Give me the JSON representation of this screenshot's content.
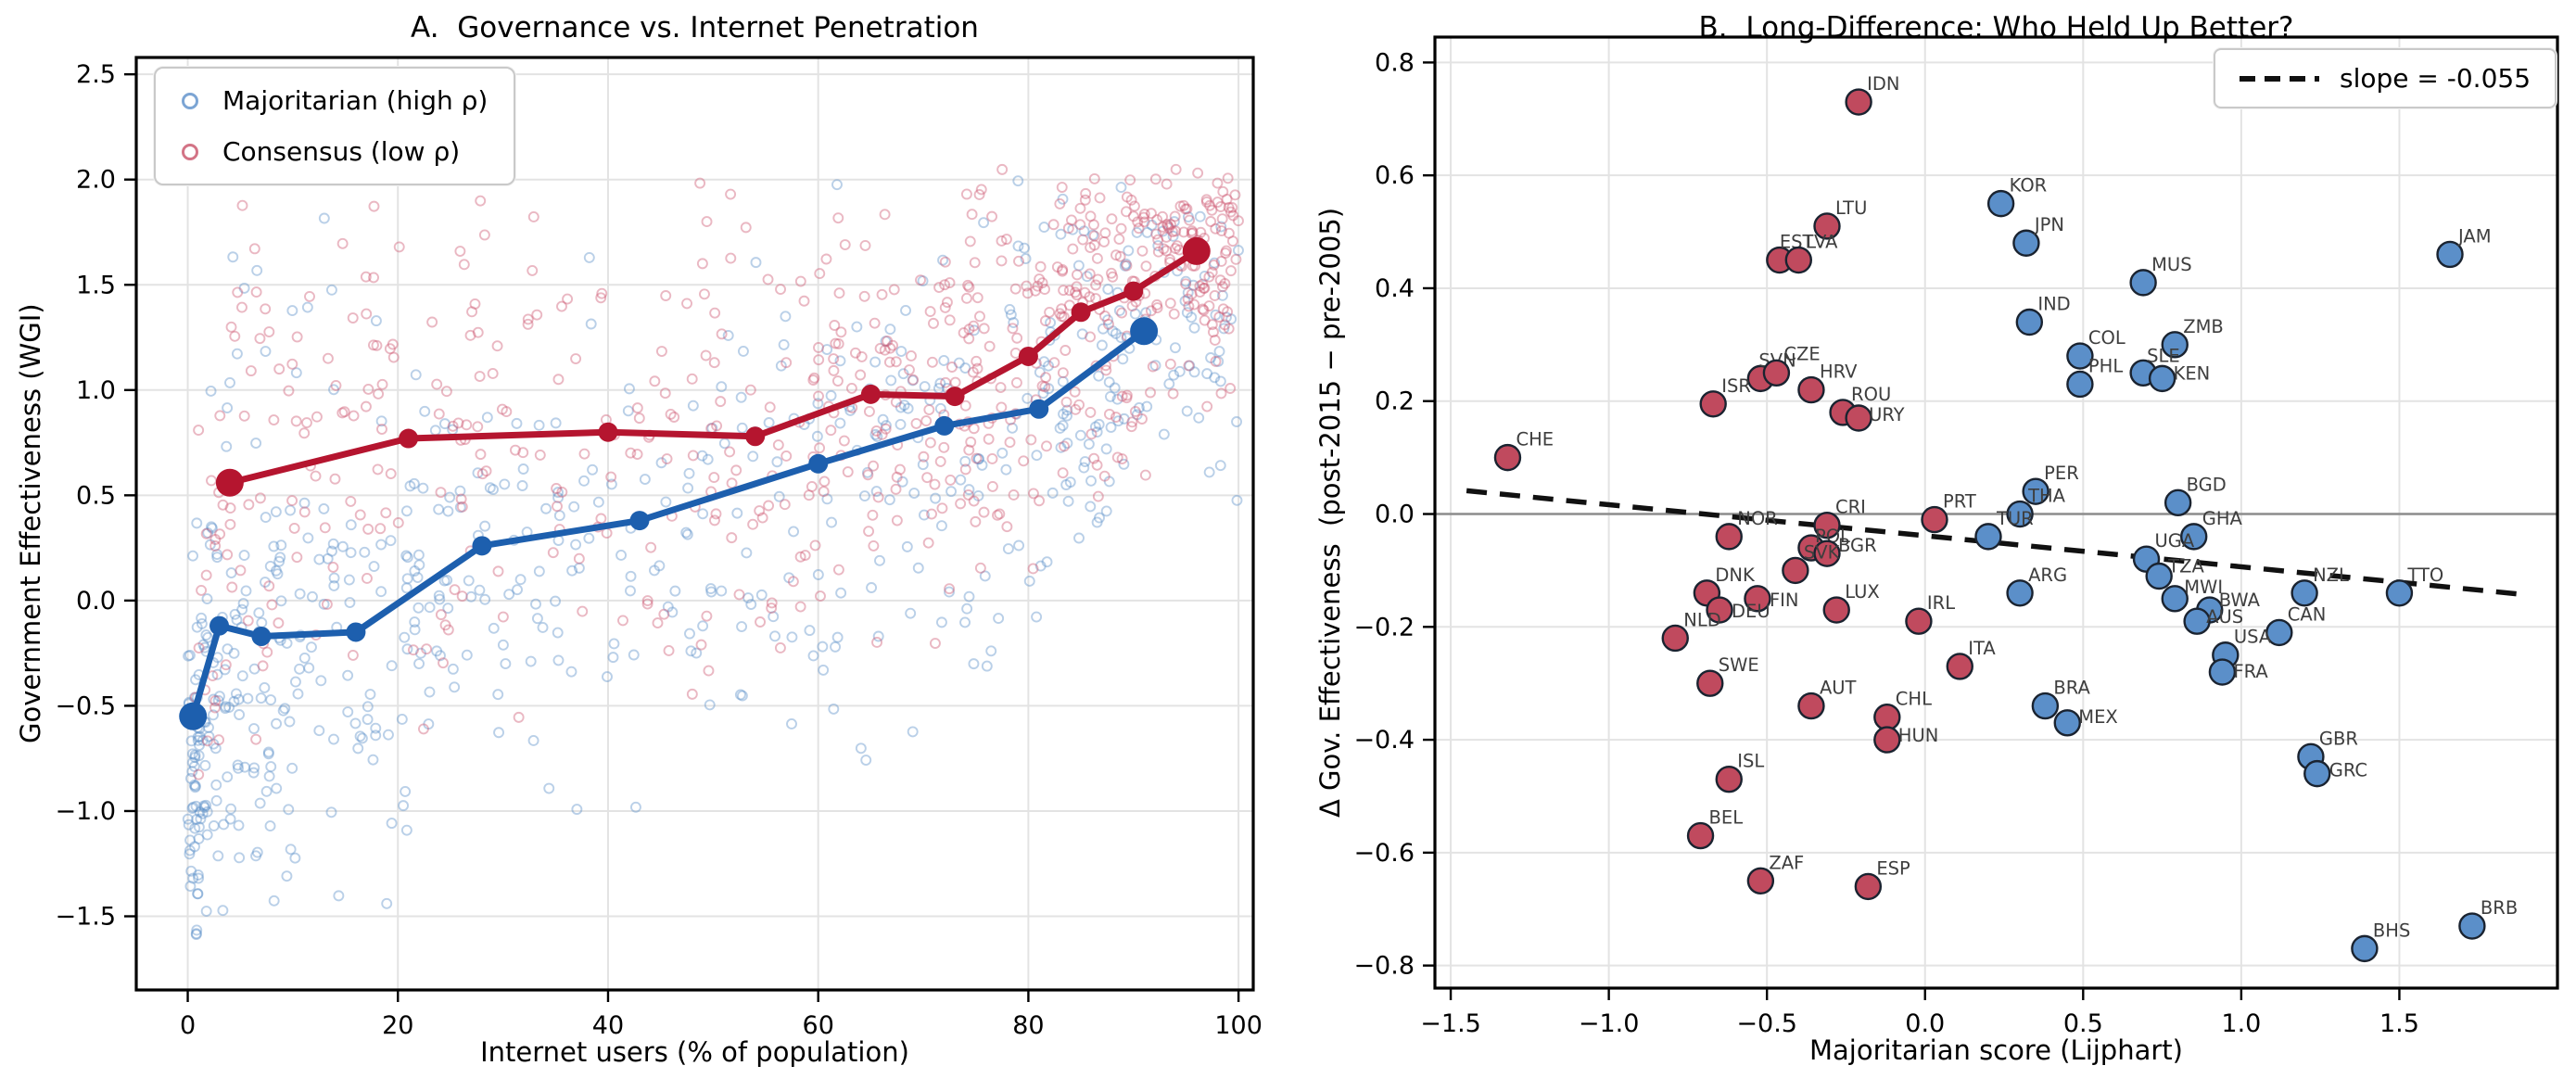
{
  "chart_data": [
    {
      "type": "scatter",
      "panel": "A",
      "title": "A.  Governance vs. Internet Penetration",
      "xlabel": "Internet users (% of population)",
      "ylabel": "Government Effectiveness (WGI)",
      "xlim": [
        -4.9,
        101.4
      ],
      "ylim": [
        -1.85,
        2.58
      ],
      "xticks": [
        0,
        20,
        40,
        60,
        80,
        100
      ],
      "yticks": [
        -1.5,
        -1.0,
        -0.5,
        0.0,
        0.5,
        1.0,
        1.5,
        2.0,
        2.5
      ],
      "grid": true,
      "legend_position": "upper left",
      "series": [
        {
          "name": "Majoritarian (high ρ)",
          "role": "decile-mean trend line",
          "line_color": "#1d5fae",
          "scatter_color": "#5b8fc9",
          "points": [
            [
              0.5,
              -0.55
            ],
            [
              3,
              -0.12
            ],
            [
              7,
              -0.17
            ],
            [
              16,
              -0.15
            ],
            [
              28,
              0.26
            ],
            [
              43,
              0.38
            ],
            [
              60,
              0.65
            ],
            [
              72,
              0.83
            ],
            [
              81,
              0.91
            ],
            [
              91,
              1.28
            ]
          ]
        },
        {
          "name": "Consensus (low ρ)",
          "role": "decile-mean trend line",
          "line_color": "#b5152f",
          "scatter_color": "#c85168",
          "points": [
            [
              4,
              0.56
            ],
            [
              21,
              0.77
            ],
            [
              40,
              0.8
            ],
            [
              54,
              0.78
            ],
            [
              65,
              0.98
            ],
            [
              73,
              0.97
            ],
            [
              80,
              1.16
            ],
            [
              85,
              1.37
            ],
            [
              90,
              1.47
            ],
            [
              96,
              1.66
            ]
          ]
        }
      ],
      "scatter_cloud": {
        "note": "approximate distribution of the country-year observations shown",
        "seed": 20240613,
        "point_radius": 5,
        "opacity": 0.42,
        "groups": [
          {
            "name": "Majoritarian (high ρ)",
            "color": "#5b8fc9",
            "clip": [
              -1.68,
              2.02
            ],
            "bins": [
              [
                0,
                2,
                55,
                -0.62,
                0.42
              ],
              [
                0,
                1.5,
                22,
                -1.15,
                0.33
              ],
              [
                2,
                5,
                45,
                -0.38,
                0.45
              ],
              [
                5,
                10,
                55,
                -0.32,
                0.5
              ],
              [
                3,
                20,
                12,
                1.35,
                0.35
              ],
              [
                10,
                22,
                75,
                -0.22,
                0.55
              ],
              [
                22,
                35,
                60,
                0.1,
                0.55
              ],
              [
                35,
                50,
                55,
                0.28,
                0.6
              ],
              [
                50,
                65,
                60,
                0.5,
                0.6
              ],
              [
                65,
                78,
                65,
                0.72,
                0.55
              ],
              [
                78,
                88,
                70,
                0.92,
                0.5
              ],
              [
                88,
                100,
                70,
                1.28,
                0.42
              ]
            ]
          },
          {
            "name": "Consensus (low ρ)",
            "color": "#cc5570",
            "clip": [
              -0.85,
              2.05
            ],
            "bins": [
              [
                0,
                8,
                8,
                -0.35,
                0.3
              ],
              [
                1,
                10,
                45,
                0.55,
                0.6
              ],
              [
                10,
                25,
                60,
                0.72,
                0.58
              ],
              [
                25,
                45,
                70,
                0.78,
                0.58
              ],
              [
                45,
                60,
                70,
                0.8,
                0.55
              ],
              [
                60,
                72,
                85,
                0.95,
                0.52
              ],
              [
                72,
                82,
                95,
                1.15,
                0.47
              ],
              [
                82,
                92,
                115,
                1.45,
                0.4
              ],
              [
                92,
                100,
                115,
                1.68,
                0.28
              ]
            ]
          }
        ]
      }
    },
    {
      "type": "scatter",
      "panel": "B",
      "title": "B.  Long-Difference: Who Held Up Better?",
      "xlabel": "Majoritarian score (Lijphart)",
      "ylabel": "Δ Gov. Effectiveness  (post-2015 − pre-2005)",
      "xlim": [
        -1.55,
        2.0
      ],
      "ylim": [
        -0.84,
        0.845
      ],
      "xticks": [
        -1.5,
        -1.0,
        -0.5,
        0.0,
        0.5,
        1.0,
        1.5
      ],
      "yticks": [
        -0.8,
        -0.6,
        -0.4,
        -0.2,
        0.0,
        0.2,
        0.4,
        0.6,
        0.8
      ],
      "zero_line": 0.0,
      "grid": true,
      "marker_radius": 13.5,
      "label_color": "#3e3e3e",
      "groups": {
        "majoritarian": {
          "color": "#5b8fc9"
        },
        "consensus": {
          "color": "#c04a5e"
        }
      },
      "regression": {
        "slope": -0.055,
        "intercept": -0.0385,
        "x_start": -1.45,
        "x_end": 1.87,
        "legend_label": "slope = -0.055"
      },
      "points": [
        {
          "code": "CHE",
          "group": "consensus",
          "x": -1.32,
          "y": 0.1
        },
        {
          "code": "IDN",
          "group": "consensus",
          "x": -0.21,
          "y": 0.73
        },
        {
          "code": "LTU",
          "group": "consensus",
          "x": -0.31,
          "y": 0.51
        },
        {
          "code": "EST",
          "group": "consensus",
          "x": -0.46,
          "y": 0.45,
          "lo": [
            0,
            -13
          ]
        },
        {
          "code": "LVA",
          "group": "consensus",
          "x": -0.4,
          "y": 0.45,
          "lo": [
            8,
            -13
          ]
        },
        {
          "code": "SVN",
          "group": "consensus",
          "x": -0.52,
          "y": 0.24,
          "lo": [
            -2,
            -13
          ]
        },
        {
          "code": "CZE",
          "group": "consensus",
          "x": -0.47,
          "y": 0.25,
          "lo": [
            8,
            -14
          ]
        },
        {
          "code": "HRV",
          "group": "consensus",
          "x": -0.36,
          "y": 0.22
        },
        {
          "code": "ISR",
          "group": "consensus",
          "x": -0.67,
          "y": 0.195
        },
        {
          "code": "ROU",
          "group": "consensus",
          "x": -0.26,
          "y": 0.18
        },
        {
          "code": "URY",
          "group": "consensus",
          "x": -0.21,
          "y": 0.17,
          "lo": [
            11,
            3
          ]
        },
        {
          "code": "NOR",
          "group": "consensus",
          "x": -0.62,
          "y": -0.04
        },
        {
          "code": "CRI",
          "group": "consensus",
          "x": -0.31,
          "y": -0.02
        },
        {
          "code": "POL",
          "group": "consensus",
          "x": -0.36,
          "y": -0.06,
          "lo": [
            4,
            -6
          ]
        },
        {
          "code": "BGR",
          "group": "consensus",
          "x": -0.31,
          "y": -0.07,
          "lo": [
            12,
            -2
          ]
        },
        {
          "code": "SVK",
          "group": "consensus",
          "x": -0.41,
          "y": -0.1
        },
        {
          "code": "DNK",
          "group": "consensus",
          "x": -0.69,
          "y": -0.14
        },
        {
          "code": "FIN",
          "group": "consensus",
          "x": -0.53,
          "y": -0.15,
          "lo": [
            13,
            8
          ]
        },
        {
          "code": "DEU",
          "group": "consensus",
          "x": -0.65,
          "y": -0.17,
          "lo": [
            13,
            8
          ]
        },
        {
          "code": "LUX",
          "group": "consensus",
          "x": -0.28,
          "y": -0.17
        },
        {
          "code": "NLD",
          "group": "consensus",
          "x": -0.79,
          "y": -0.22
        },
        {
          "code": "IRL",
          "group": "consensus",
          "x": -0.02,
          "y": -0.19
        },
        {
          "code": "PRT",
          "group": "consensus",
          "x": 0.03,
          "y": -0.01
        },
        {
          "code": "ITA",
          "group": "consensus",
          "x": 0.11,
          "y": -0.27
        },
        {
          "code": "SWE",
          "group": "consensus",
          "x": -0.68,
          "y": -0.3
        },
        {
          "code": "AUT",
          "group": "consensus",
          "x": -0.36,
          "y": -0.34
        },
        {
          "code": "CHL",
          "group": "consensus",
          "x": -0.12,
          "y": -0.36
        },
        {
          "code": "HUN",
          "group": "consensus",
          "x": -0.12,
          "y": -0.4,
          "lo": [
            12,
            2
          ]
        },
        {
          "code": "ISL",
          "group": "consensus",
          "x": -0.62,
          "y": -0.47
        },
        {
          "code": "BEL",
          "group": "consensus",
          "x": -0.71,
          "y": -0.57
        },
        {
          "code": "ZAF",
          "group": "consensus",
          "x": -0.52,
          "y": -0.65
        },
        {
          "code": "ESP",
          "group": "consensus",
          "x": -0.18,
          "y": -0.66
        },
        {
          "code": "KOR",
          "group": "majoritarian",
          "x": 0.24,
          "y": 0.55
        },
        {
          "code": "JPN",
          "group": "majoritarian",
          "x": 0.32,
          "y": 0.48
        },
        {
          "code": "JAM",
          "group": "majoritarian",
          "x": 1.66,
          "y": 0.46
        },
        {
          "code": "MUS",
          "group": "majoritarian",
          "x": 0.69,
          "y": 0.41
        },
        {
          "code": "IND",
          "group": "majoritarian",
          "x": 0.33,
          "y": 0.34
        },
        {
          "code": "ZMB",
          "group": "majoritarian",
          "x": 0.79,
          "y": 0.3
        },
        {
          "code": "COL",
          "group": "majoritarian",
          "x": 0.49,
          "y": 0.28
        },
        {
          "code": "SLE",
          "group": "majoritarian",
          "x": 0.69,
          "y": 0.25,
          "lo": [
            4,
            -12
          ]
        },
        {
          "code": "KEN",
          "group": "majoritarian",
          "x": 0.75,
          "y": 0.24,
          "lo": [
            12,
            1
          ]
        },
        {
          "code": "PHL",
          "group": "majoritarian",
          "x": 0.49,
          "y": 0.23
        },
        {
          "code": "PER",
          "group": "majoritarian",
          "x": 0.35,
          "y": 0.04
        },
        {
          "code": "BGD",
          "group": "majoritarian",
          "x": 0.8,
          "y": 0.02
        },
        {
          "code": "THA",
          "group": "majoritarian",
          "x": 0.3,
          "y": 0.0
        },
        {
          "code": "TUR",
          "group": "majoritarian",
          "x": 0.2,
          "y": -0.04
        },
        {
          "code": "GHA",
          "group": "majoritarian",
          "x": 0.85,
          "y": -0.04
        },
        {
          "code": "UGA",
          "group": "majoritarian",
          "x": 0.7,
          "y": -0.08
        },
        {
          "code": "TZA",
          "group": "majoritarian",
          "x": 0.74,
          "y": -0.11,
          "lo": [
            10,
            -4
          ]
        },
        {
          "code": "NZL",
          "group": "majoritarian",
          "x": 1.2,
          "y": -0.14
        },
        {
          "code": "TTO",
          "group": "majoritarian",
          "x": 1.5,
          "y": -0.14
        },
        {
          "code": "ARG",
          "group": "majoritarian",
          "x": 0.3,
          "y": -0.14
        },
        {
          "code": "MWI",
          "group": "majoritarian",
          "x": 0.79,
          "y": -0.15,
          "lo": [
            10,
            -6
          ]
        },
        {
          "code": "BWA",
          "group": "majoritarian",
          "x": 0.9,
          "y": -0.17,
          "lo": [
            10,
            -4
          ]
        },
        {
          "code": "AUS",
          "group": "majoritarian",
          "x": 0.86,
          "y": -0.19,
          "lo": [
            10,
            2
          ]
        },
        {
          "code": "CAN",
          "group": "majoritarian",
          "x": 1.12,
          "y": -0.21
        },
        {
          "code": "USA",
          "group": "majoritarian",
          "x": 0.95,
          "y": -0.25
        },
        {
          "code": "FRA",
          "group": "majoritarian",
          "x": 0.94,
          "y": -0.28,
          "lo": [
            12,
            6
          ]
        },
        {
          "code": "BRA",
          "group": "majoritarian",
          "x": 0.38,
          "y": -0.34
        },
        {
          "code": "MEX",
          "group": "majoritarian",
          "x": 0.45,
          "y": -0.37,
          "lo": [
            12,
            0
          ]
        },
        {
          "code": "GBR",
          "group": "majoritarian",
          "x": 1.22,
          "y": -0.43
        },
        {
          "code": "GRC",
          "group": "majoritarian",
          "x": 1.24,
          "y": -0.46,
          "lo": [
            13,
            3
          ]
        },
        {
          "code": "BHS",
          "group": "majoritarian",
          "x": 1.39,
          "y": -0.77
        },
        {
          "code": "BRB",
          "group": "majoritarian",
          "x": 1.73,
          "y": -0.73
        }
      ]
    }
  ],
  "style": {
    "grid_color": "#e3e3e3",
    "spine_color": "#000000",
    "zero_line_color": "#8c8c8c",
    "regression_color": "#111111",
    "tick_label_color": "#000000",
    "marker_edge_color": "#1a2330"
  }
}
